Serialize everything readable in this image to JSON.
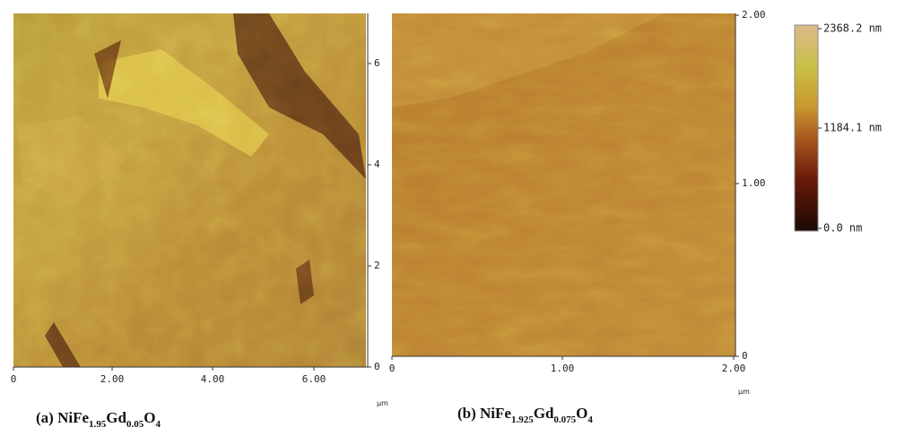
{
  "panel_a": {
    "x_ticks": [
      "0",
      "2.00",
      "4.00",
      "6.00"
    ],
    "y_ticks": [
      "0",
      "2",
      "4",
      "6"
    ],
    "unit": "μm",
    "caption": [
      {
        "text": "(a) NiFe"
      },
      {
        "text": "1.95",
        "sub": true
      },
      {
        "text": "Gd"
      },
      {
        "text": "0.05",
        "sub": true
      },
      {
        "text": "O"
      },
      {
        "text": "4",
        "sub": true
      }
    ]
  },
  "panel_b": {
    "x_ticks": [
      "0",
      "1.00",
      "2.00"
    ],
    "y_ticks": [
      "0",
      "1.00",
      "2.00"
    ],
    "unit": "μm",
    "caption": [
      {
        "text": "(b) NiFe"
      },
      {
        "text": "1.925",
        "sub": true
      },
      {
        "text": "Gd"
      },
      {
        "text": "0.075",
        "sub": true
      },
      {
        "text": "O"
      },
      {
        "text": "4",
        "sub": true
      }
    ]
  },
  "color_scale": {
    "labels": [
      "2368.2 nm",
      "1184.1 nm",
      "0.0 nm"
    ]
  }
}
